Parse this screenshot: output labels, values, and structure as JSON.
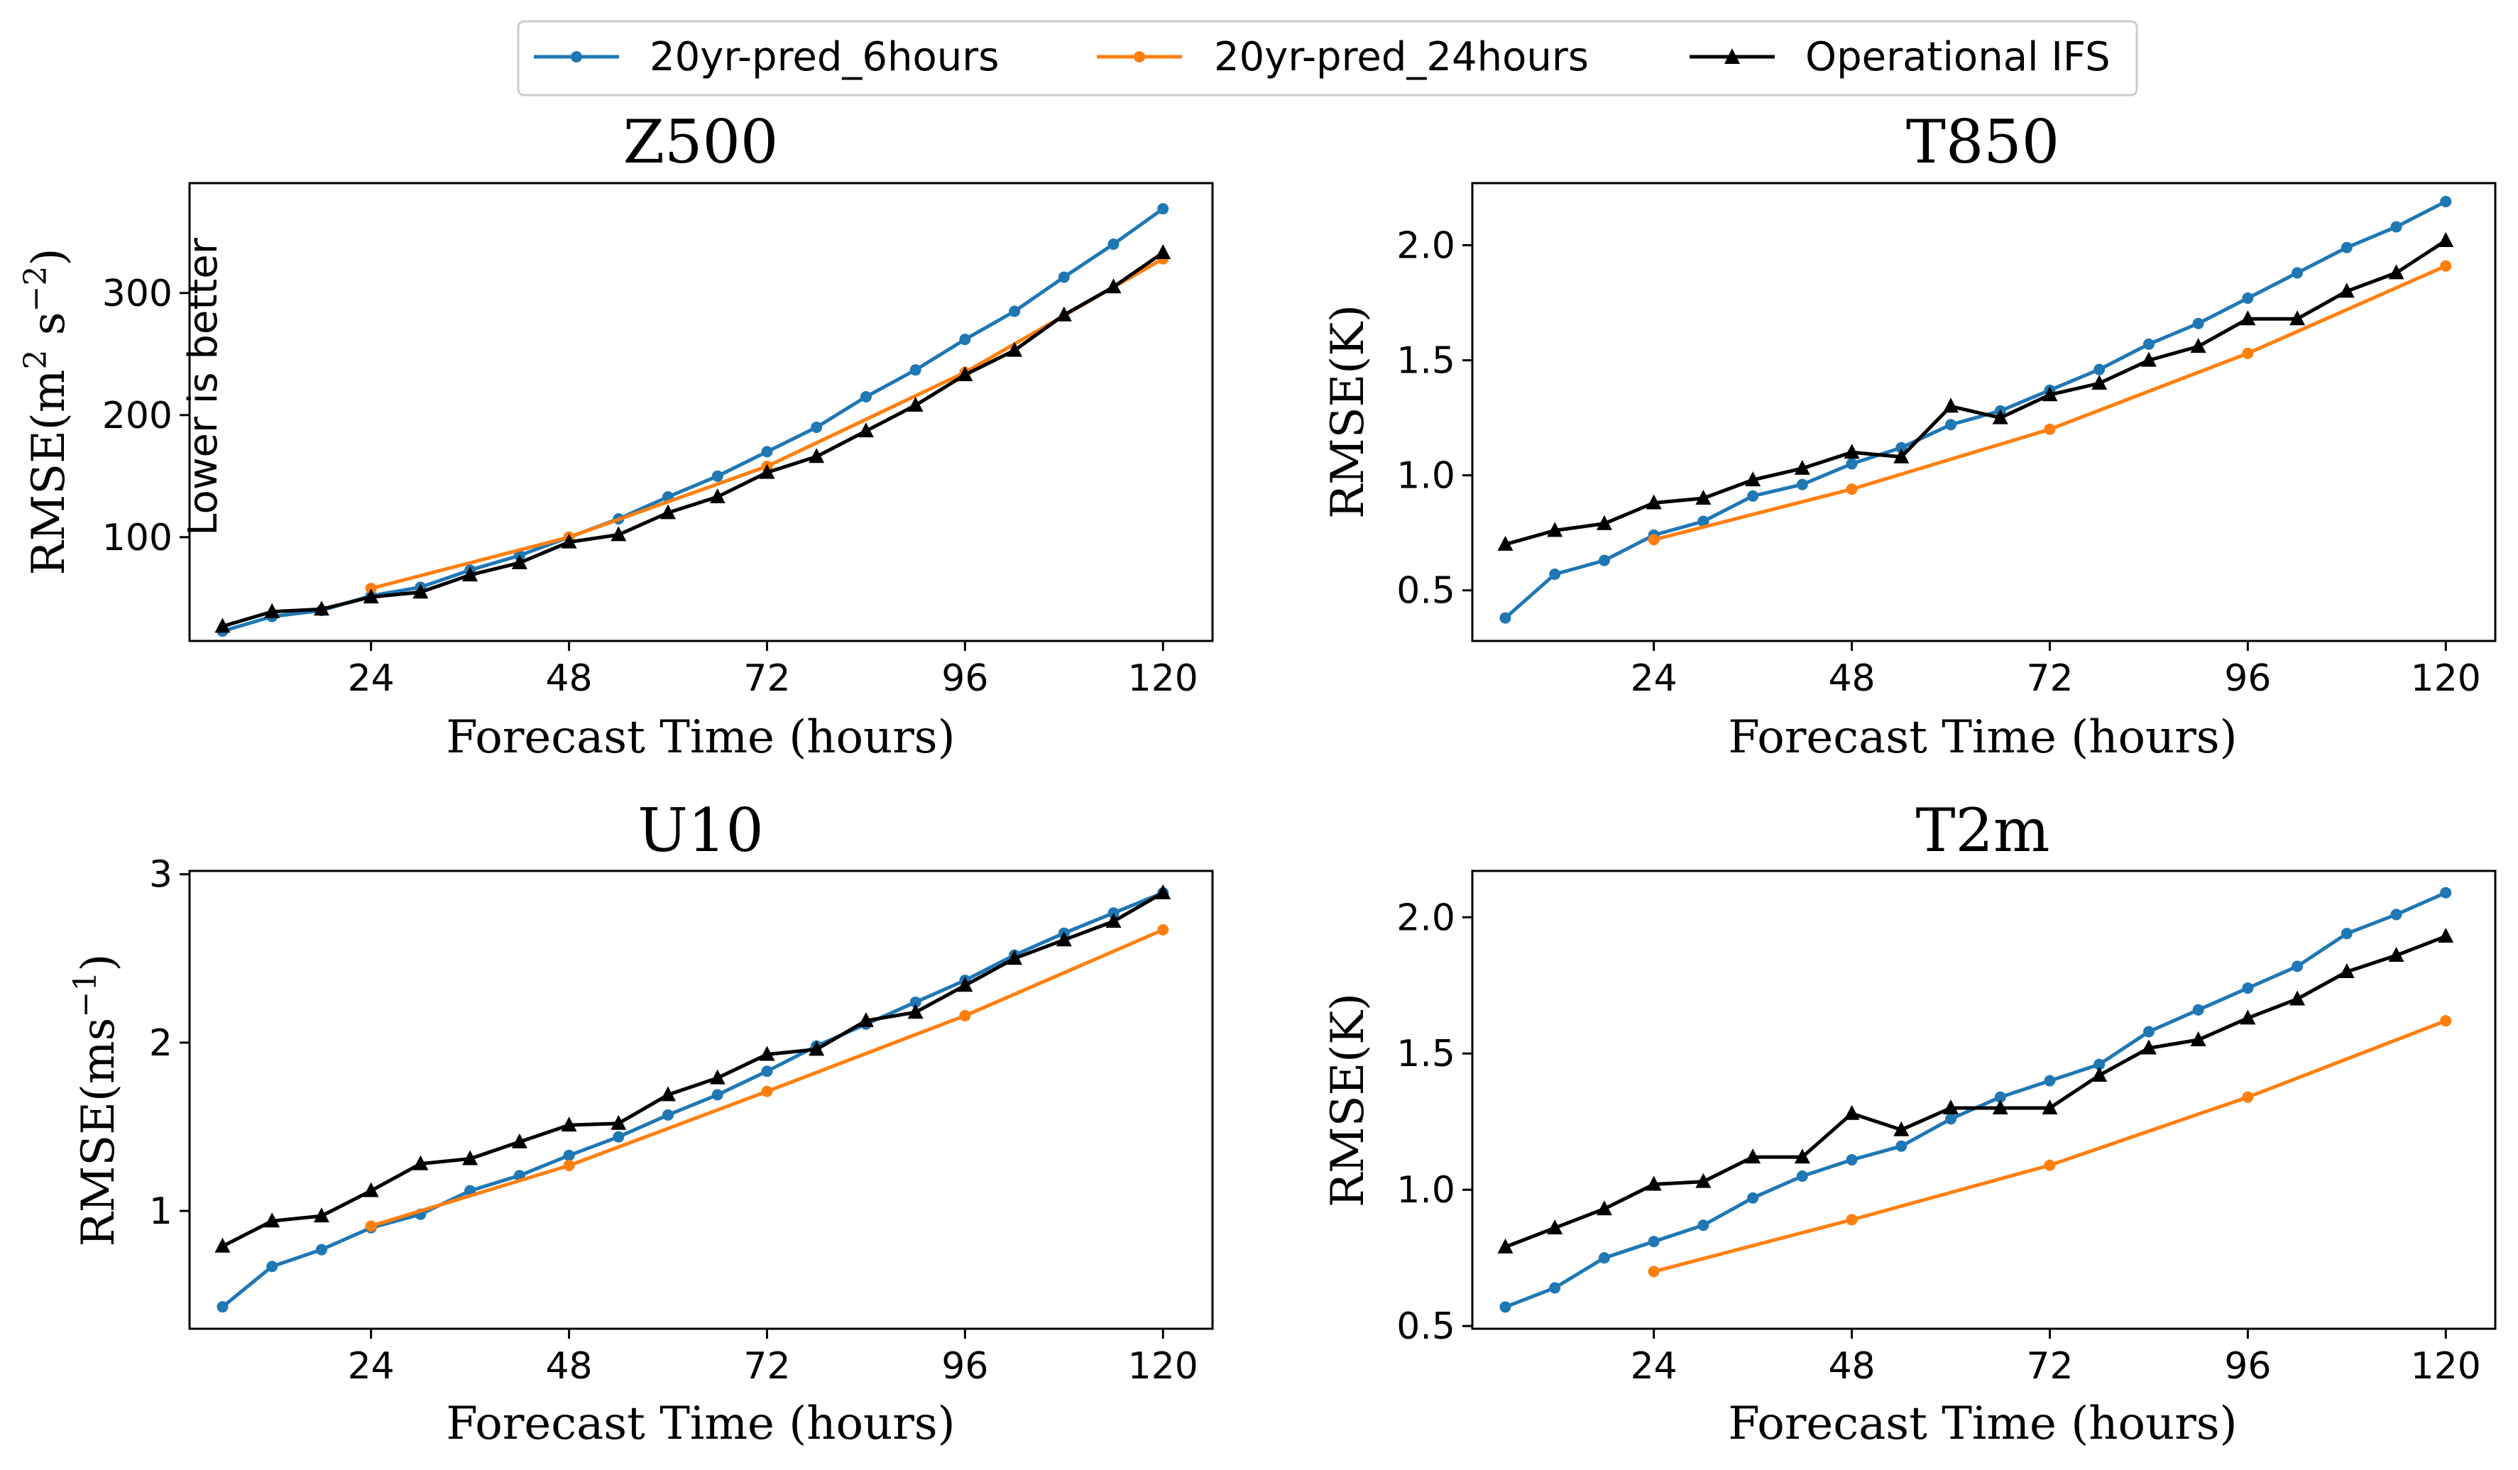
{
  "legend": {
    "placement": "top-center",
    "entries": [
      {
        "label": "20yr-pred_6hours",
        "color": "#1f77b4",
        "marker": "circle"
      },
      {
        "label": "20yr-pred_24hours",
        "color": "#ff7f0e",
        "marker": "circle"
      },
      {
        "label": "Operational IFS",
        "color": "#000000",
        "marker": "triangle"
      }
    ]
  },
  "chart_data": [
    {
      "type": "line",
      "title": "Z500",
      "xlabel": "Forecast Time (hours)",
      "ylabel": "RMSE(m² s⁻²)",
      "ylabel_main": "RMSE(m",
      "ylabel_sup1": "2",
      "ylabel_mid": " s",
      "ylabel_sup2": "−2",
      "ylabel_end": ")",
      "annotation": "Lower is better",
      "xlim": [
        2,
        126
      ],
      "ylim": [
        15,
        390
      ],
      "xticks": [
        24,
        48,
        72,
        96,
        120
      ],
      "yticks": [
        100,
        200,
        300
      ],
      "grid": false,
      "series": [
        {
          "name": "20yr-pred_6hours",
          "color": "#1f77b4",
          "marker": "circle",
          "x": [
            6,
            12,
            18,
            24,
            30,
            36,
            42,
            48,
            54,
            60,
            66,
            72,
            78,
            84,
            90,
            96,
            102,
            108,
            114,
            120
          ],
          "y": [
            23,
            35,
            40,
            52,
            59,
            73,
            85,
            100,
            115,
            133,
            150,
            170,
            190,
            215,
            237,
            262,
            285,
            313,
            340,
            369
          ]
        },
        {
          "name": "20yr-pred_24hours",
          "color": "#ff7f0e",
          "marker": "circle",
          "x": [
            24,
            48,
            72,
            96,
            120
          ],
          "y": [
            58,
            100,
            158,
            235,
            328
          ]
        },
        {
          "name": "Operational IFS",
          "color": "#000000",
          "marker": "triangle",
          "x": [
            6,
            12,
            18,
            24,
            30,
            36,
            42,
            48,
            54,
            60,
            66,
            72,
            78,
            84,
            90,
            96,
            102,
            108,
            114,
            120
          ],
          "y": [
            27,
            39,
            41,
            51,
            55,
            69,
            79,
            96,
            102,
            120,
            133,
            153,
            166,
            187,
            208,
            233,
            253,
            282,
            305,
            333
          ]
        }
      ]
    },
    {
      "type": "line",
      "title": "T850",
      "xlabel": "Forecast Time (hours)",
      "ylabel": "RMSE(K)",
      "ylabel_main": "RMSE(K)",
      "xlim": [
        2,
        126
      ],
      "ylim": [
        0.28,
        2.27
      ],
      "xticks": [
        24,
        48,
        72,
        96,
        120
      ],
      "yticks": [
        0.5,
        1.0,
        1.5,
        2.0
      ],
      "ytick_labels": [
        "0.5",
        "1.0",
        "1.5",
        "2.0"
      ],
      "grid": false,
      "series": [
        {
          "name": "20yr-pred_6hours",
          "color": "#1f77b4",
          "marker": "circle",
          "x": [
            6,
            12,
            18,
            24,
            30,
            36,
            42,
            48,
            54,
            60,
            66,
            72,
            78,
            84,
            90,
            96,
            102,
            108,
            114,
            120
          ],
          "y": [
            0.38,
            0.57,
            0.63,
            0.74,
            0.8,
            0.91,
            0.96,
            1.05,
            1.12,
            1.22,
            1.28,
            1.37,
            1.46,
            1.57,
            1.66,
            1.77,
            1.88,
            1.99,
            2.08,
            2.19
          ]
        },
        {
          "name": "20yr-pred_24hours",
          "color": "#ff7f0e",
          "marker": "circle",
          "x": [
            24,
            48,
            72,
            96,
            120
          ],
          "y": [
            0.72,
            0.94,
            1.2,
            1.53,
            1.91
          ]
        },
        {
          "name": "Operational IFS",
          "color": "#000000",
          "marker": "triangle",
          "x": [
            6,
            12,
            18,
            24,
            30,
            36,
            42,
            48,
            54,
            60,
            66,
            72,
            78,
            84,
            90,
            96,
            102,
            108,
            114,
            120
          ],
          "y": [
            0.7,
            0.76,
            0.79,
            0.88,
            0.9,
            0.98,
            1.03,
            1.1,
            1.08,
            1.3,
            1.25,
            1.35,
            1.4,
            1.5,
            1.56,
            1.68,
            1.68,
            1.8,
            1.88,
            2.02
          ]
        }
      ]
    },
    {
      "type": "line",
      "title": "U10",
      "xlabel": "Forecast Time (hours)",
      "ylabel": "RMSE(ms⁻¹)",
      "ylabel_main": "RMSE(ms",
      "ylabel_sup1": "−1",
      "ylabel_end": ")",
      "xlim": [
        2,
        126
      ],
      "ylim": [
        0.3,
        3.02
      ],
      "xticks": [
        24,
        48,
        72,
        96,
        120
      ],
      "yticks": [
        1,
        2,
        3
      ],
      "grid": false,
      "series": [
        {
          "name": "20yr-pred_6hours",
          "color": "#1f77b4",
          "marker": "circle",
          "x": [
            6,
            12,
            18,
            24,
            30,
            36,
            42,
            48,
            54,
            60,
            66,
            72,
            78,
            84,
            90,
            96,
            102,
            108,
            114,
            120
          ],
          "y": [
            0.43,
            0.67,
            0.77,
            0.9,
            0.98,
            1.12,
            1.21,
            1.33,
            1.44,
            1.57,
            1.69,
            1.83,
            1.98,
            2.11,
            2.24,
            2.37,
            2.52,
            2.65,
            2.77,
            2.89
          ]
        },
        {
          "name": "20yr-pred_24hours",
          "color": "#ff7f0e",
          "marker": "circle",
          "x": [
            24,
            48,
            72,
            96,
            120
          ],
          "y": [
            0.91,
            1.27,
            1.71,
            2.16,
            2.67
          ]
        },
        {
          "name": "Operational IFS",
          "color": "#000000",
          "marker": "triangle",
          "x": [
            6,
            12,
            18,
            24,
            30,
            36,
            42,
            48,
            54,
            60,
            66,
            72,
            78,
            84,
            90,
            96,
            102,
            108,
            114,
            120
          ],
          "y": [
            0.79,
            0.94,
            0.97,
            1.12,
            1.28,
            1.31,
            1.41,
            1.51,
            1.52,
            1.69,
            1.79,
            1.93,
            1.96,
            2.13,
            2.18,
            2.34,
            2.5,
            2.61,
            2.72,
            2.89
          ]
        }
      ]
    },
    {
      "type": "line",
      "title": "T2m",
      "xlabel": "Forecast Time (hours)",
      "ylabel": "RMSE(K)",
      "ylabel_main": "RMSE(K)",
      "xlim": [
        2,
        126
      ],
      "ylim": [
        0.49,
        2.17
      ],
      "xticks": [
        24,
        48,
        72,
        96,
        120
      ],
      "yticks": [
        0.5,
        1.0,
        1.5,
        2.0
      ],
      "ytick_labels": [
        "0.5",
        "1.0",
        "1.5",
        "2.0"
      ],
      "grid": false,
      "series": [
        {
          "name": "20yr-pred_6hours",
          "color": "#1f77b4",
          "marker": "circle",
          "x": [
            6,
            12,
            18,
            24,
            30,
            36,
            42,
            48,
            54,
            60,
            66,
            72,
            78,
            84,
            90,
            96,
            102,
            108,
            114,
            120
          ],
          "y": [
            0.57,
            0.64,
            0.75,
            0.81,
            0.87,
            0.97,
            1.05,
            1.11,
            1.16,
            1.26,
            1.34,
            1.4,
            1.46,
            1.58,
            1.66,
            1.74,
            1.82,
            1.94,
            2.01,
            2.09
          ]
        },
        {
          "name": "20yr-pred_24hours",
          "color": "#ff7f0e",
          "marker": "circle",
          "x": [
            24,
            48,
            72,
            96,
            120
          ],
          "y": [
            0.7,
            0.89,
            1.09,
            1.34,
            1.62
          ]
        },
        {
          "name": "Operational IFS",
          "color": "#000000",
          "marker": "triangle",
          "x": [
            6,
            12,
            18,
            24,
            30,
            36,
            42,
            48,
            54,
            60,
            66,
            72,
            78,
            84,
            90,
            96,
            102,
            108,
            114,
            120
          ],
          "y": [
            0.79,
            0.86,
            0.93,
            1.02,
            1.03,
            1.12,
            1.12,
            1.28,
            1.22,
            1.3,
            1.3,
            1.3,
            1.42,
            1.52,
            1.55,
            1.63,
            1.7,
            1.8,
            1.86,
            1.93
          ]
        }
      ]
    }
  ]
}
